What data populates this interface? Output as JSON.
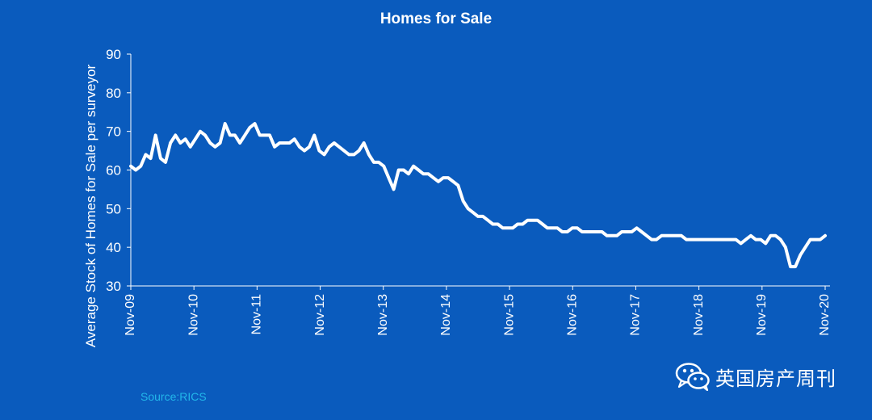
{
  "chart_data": {
    "type": "line",
    "title": "Homes for Sale",
    "ylabel": "Average Stock of Homes for Sale per surveyor",
    "xlabel": "",
    "ylim": [
      30,
      90
    ],
    "yticks": [
      30,
      40,
      50,
      60,
      70,
      80,
      90
    ],
    "xticks": [
      "Nov-09",
      "Nov-10",
      "Nov-11",
      "Nov-12",
      "Nov-13",
      "Nov-14",
      "Nov-15",
      "Nov-16",
      "Nov-17",
      "Nov-18",
      "Nov-19",
      "Nov-20"
    ],
    "grid": false,
    "legend": "none",
    "series": [
      {
        "values": [
          61,
          60,
          61,
          64,
          63,
          69,
          63,
          62,
          67,
          69,
          67,
          68,
          66,
          68,
          70,
          69,
          67,
          66,
          67,
          72,
          69,
          69,
          67,
          69,
          71,
          72,
          69,
          69,
          69,
          66,
          67,
          67,
          67,
          68,
          66,
          65,
          66,
          69,
          65,
          64,
          66,
          67,
          66,
          65,
          64,
          64,
          65,
          67,
          64,
          62,
          62,
          61,
          58,
          55,
          60,
          60,
          59,
          61,
          60,
          59,
          59,
          58,
          57,
          58,
          58,
          57,
          56,
          52,
          50,
          49,
          48,
          48,
          47,
          46,
          46,
          45,
          45,
          45,
          46,
          46,
          47,
          47,
          47,
          46,
          45,
          45,
          45,
          44,
          44,
          45,
          45,
          44,
          44,
          44,
          44,
          44,
          43,
          43,
          43,
          44,
          44,
          44,
          45,
          44,
          43,
          42,
          42,
          43,
          43,
          43,
          43,
          43,
          42,
          42,
          42,
          42,
          42,
          42,
          42,
          42,
          42,
          42,
          42,
          41,
          42,
          43,
          42,
          42,
          41,
          43,
          43,
          42,
          40,
          35,
          35,
          38,
          40,
          42,
          42,
          42,
          43
        ]
      }
    ]
  },
  "colors": {
    "background": "#0a5bbd",
    "line": "#ffffff",
    "text": "#ffffff",
    "source": "#22b7ea"
  },
  "footer": {
    "source": "Source:RICS",
    "watermark": "英国房产周刊",
    "watermark_icon": "wechat-icon"
  }
}
